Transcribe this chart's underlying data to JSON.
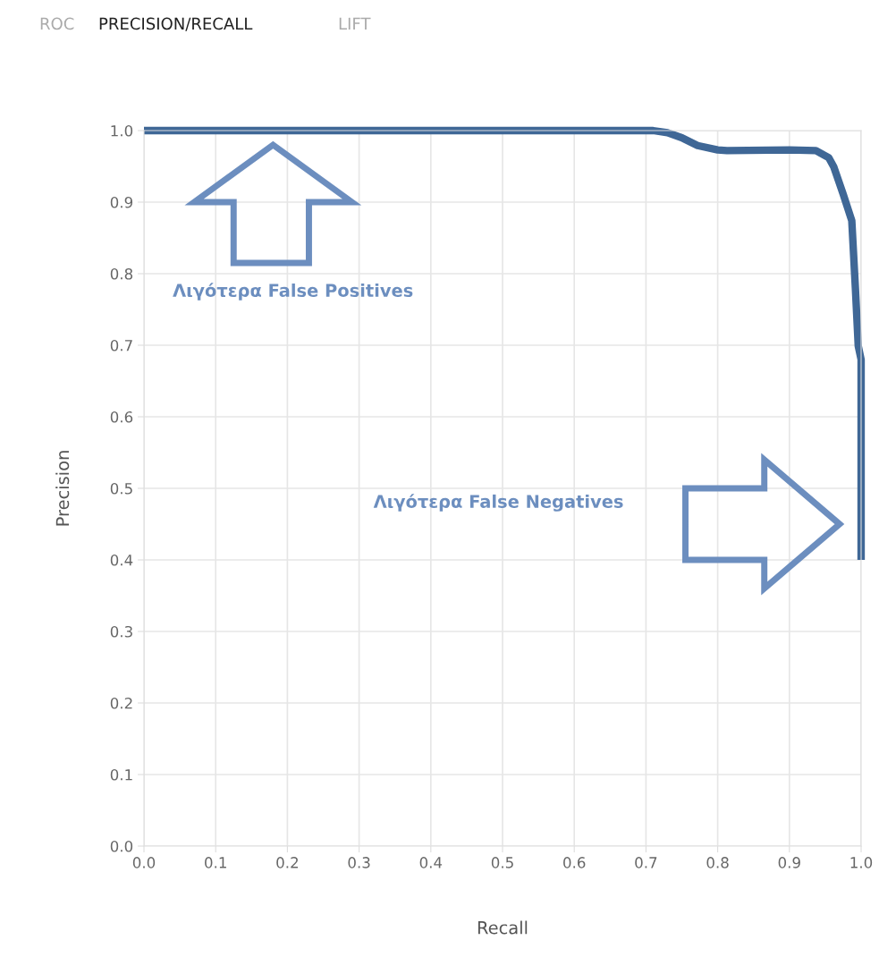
{
  "chart_data": {
    "type": "line",
    "xlabel": "Recall",
    "ylabel": "Precision",
    "annotations": [
      "ROC",
      "PRECISION/RECALL",
      "LIFT",
      "Λιγότερα False Positives",
      "Λιγότερα False Negatives"
    ],
    "series": [
      {
        "color": "#3f6796",
        "x": [
          0,
          0.5,
          0.71,
          0.73,
          0.75,
          0.772,
          0.8,
          0.813,
          0.9,
          0.937,
          0.955,
          0.962,
          0.975,
          0.987,
          0.992,
          0.996,
          1.0,
          1.0
        ],
        "values": [
          1.0,
          1.0,
          1.0,
          0.997,
          0.99,
          0.979,
          0.973,
          0.972,
          0.973,
          0.972,
          0.962,
          0.949,
          0.911,
          0.874,
          0.78,
          0.699,
          0.68,
          0.4
        ]
      }
    ],
    "xlim": [
      0,
      1
    ],
    "ylim": [
      0,
      1
    ],
    "xticks": [
      {
        "value": 0,
        "label": "0.0"
      },
      0.1,
      0.2,
      0.3,
      0.4,
      0.5,
      0.6,
      0.7,
      0.8,
      0.9,
      {
        "value": 1,
        "label": "1.0"
      }
    ],
    "yticks": [
      {
        "value": 0,
        "label": "0.0"
      },
      0.1,
      0.2,
      0.3,
      0.4,
      0.5,
      0.6,
      0.7,
      0.8,
      0.9,
      {
        "value": 1,
        "label": "1.0"
      }
    ],
    "grid": true,
    "marker": "none",
    "line_style": "solid"
  }
}
